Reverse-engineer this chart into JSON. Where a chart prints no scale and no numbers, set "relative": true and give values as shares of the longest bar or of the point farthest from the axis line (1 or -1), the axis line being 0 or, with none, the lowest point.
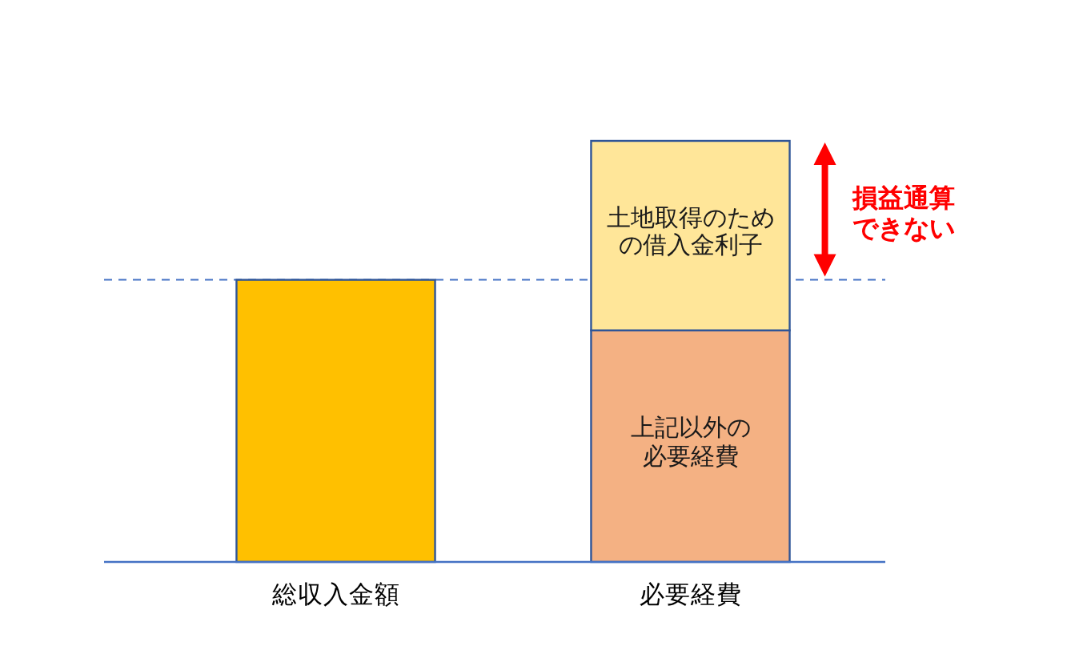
{
  "chart_data": {
    "type": "bar",
    "stacked": true,
    "relative": true,
    "categories": [
      "総収入金額",
      "必要経費"
    ],
    "series": [
      {
        "color": "#ffc000",
        "values": [
          0.67,
          null
        ]
      },
      {
        "name": "上記以外の必要経費",
        "color": "#f4b183",
        "values": [
          null,
          0.55
        ]
      },
      {
        "name": "土地取得のための借入金利子",
        "color": "#ffe699",
        "values": [
          null,
          0.45
        ]
      }
    ],
    "ref_lines": [
      {
        "axis": "y",
        "value": 0.67,
        "color": "#4472c4",
        "line_style": "dashed"
      }
    ],
    "annotations": [
      "損益通算できない"
    ]
  }
}
